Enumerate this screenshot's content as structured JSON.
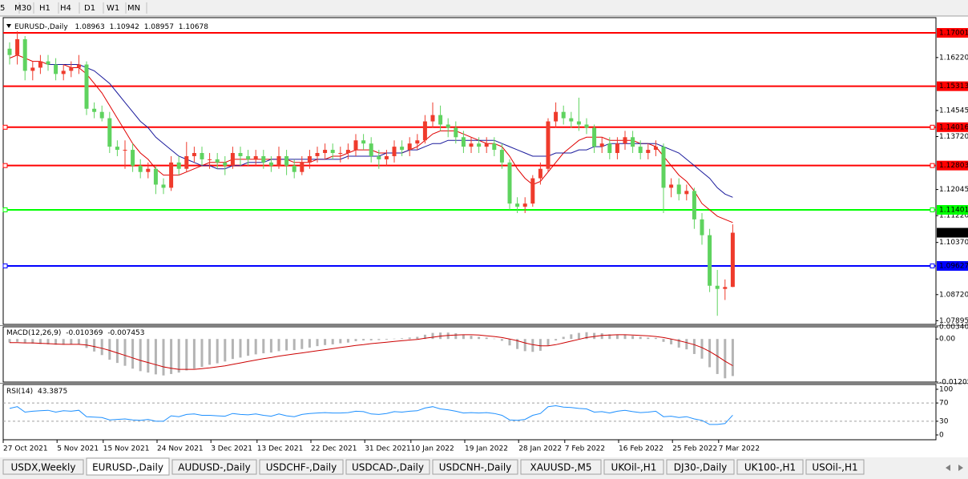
{
  "toolbar": {
    "timeframes": [
      "5",
      "M30",
      "H1",
      "H4",
      "D1",
      "W1",
      "MN"
    ]
  },
  "chart_data": [
    {
      "type": "candlestick",
      "title": "EURUSD-,Daily",
      "categories": [
        "27 Oct 2021",
        null,
        null,
        null,
        null,
        null,
        null,
        "5 Nov 2021",
        null,
        null,
        null,
        null,
        null,
        "15 Nov 2021",
        null,
        null,
        null,
        null,
        null,
        null,
        "24 Nov 2021",
        null,
        null,
        null,
        null,
        null,
        null,
        "3 Dec 2021",
        null,
        null,
        null,
        null,
        null,
        "13 Dec 2021",
        null,
        null,
        null,
        null,
        null,
        null,
        "22 Dec 2021",
        null,
        null,
        null,
        null,
        null,
        null,
        "31 Dec 2021",
        null,
        null,
        null,
        null,
        null,
        "10 Jan 2022",
        null,
        null,
        null,
        null,
        null,
        null,
        "19 Jan 2022",
        null,
        null,
        null,
        null,
        null,
        null,
        "28 Jan 2022",
        null,
        null,
        null,
        null,
        null,
        "7 Feb 2022",
        null,
        null,
        null,
        null,
        null,
        null,
        "16 Feb 2022",
        null,
        null,
        null,
        null,
        null,
        null,
        "25 Feb 2022",
        null,
        null,
        null,
        null,
        null,
        "7 Mar 2022",
        null
      ],
      "open": [
        1.165,
        1.163,
        1.168,
        1.158,
        1.159,
        1.161,
        1.16,
        1.157,
        1.158,
        1.159,
        1.16,
        1.146,
        1.145,
        1.143,
        1.134,
        1.133,
        1.133,
        1.128,
        1.126,
        1.127,
        1.122,
        1.121,
        1.129,
        1.127,
        1.131,
        1.132,
        1.13,
        1.13,
        1.129,
        1.128,
        1.132,
        1.131,
        1.13,
        1.131,
        1.129,
        1.128,
        1.131,
        1.128,
        1.126,
        1.129,
        1.131,
        1.132,
        1.133,
        1.132,
        1.132,
        1.133,
        1.136,
        1.135,
        1.131,
        1.13,
        1.131,
        1.134,
        1.133,
        1.135,
        1.136,
        1.142,
        1.144,
        1.141,
        1.14,
        1.137,
        1.134,
        1.135,
        1.134,
        1.135,
        1.133,
        1.129,
        1.116,
        1.115,
        1.116,
        1.124,
        1.127,
        1.142,
        1.145,
        1.143,
        1.142,
        1.141,
        1.14,
        1.134,
        1.135,
        1.132,
        1.135,
        1.137,
        1.134,
        1.132,
        1.133,
        1.134,
        1.121,
        1.122,
        1.119,
        1.12,
        1.111,
        1.106,
        1.09,
        1.089,
        1.08963
      ],
      "high": [
        1.167,
        1.1705,
        1.169,
        1.161,
        1.163,
        1.163,
        1.162,
        1.16,
        1.161,
        1.163,
        1.161,
        1.148,
        1.147,
        1.145,
        1.136,
        1.136,
        1.135,
        1.13,
        1.129,
        1.128,
        1.124,
        1.131,
        1.131,
        1.1355,
        1.134,
        1.134,
        1.132,
        1.132,
        1.131,
        1.134,
        1.134,
        1.133,
        1.133,
        1.133,
        1.131,
        1.134,
        1.133,
        1.13,
        1.131,
        1.133,
        1.134,
        1.135,
        1.135,
        1.134,
        1.135,
        1.138,
        1.138,
        1.137,
        1.133,
        1.133,
        1.136,
        1.136,
        1.137,
        1.138,
        1.144,
        1.148,
        1.147,
        1.143,
        1.142,
        1.139,
        1.137,
        1.137,
        1.137,
        1.137,
        1.135,
        1.13,
        1.118,
        1.118,
        1.125,
        1.129,
        1.143,
        1.148,
        1.147,
        1.145,
        1.1495,
        1.143,
        1.141,
        1.137,
        1.137,
        1.137,
        1.139,
        1.139,
        1.136,
        1.135,
        1.136,
        1.135,
        1.124,
        1.124,
        1.122,
        1.121,
        1.113,
        1.108,
        1.095,
        1.092,
        1.10942
      ],
      "low": [
        1.16,
        1.16,
        1.155,
        1.155,
        1.157,
        1.158,
        1.155,
        1.155,
        1.156,
        1.157,
        1.144,
        1.143,
        1.142,
        1.132,
        1.131,
        1.127,
        1.126,
        1.124,
        1.124,
        1.119,
        1.119,
        1.12,
        1.125,
        1.126,
        1.129,
        1.128,
        1.127,
        1.127,
        1.125,
        1.127,
        1.128,
        1.128,
        1.128,
        1.127,
        1.126,
        1.127,
        1.125,
        1.124,
        1.125,
        1.127,
        1.129,
        1.13,
        1.13,
        1.129,
        1.13,
        1.131,
        1.133,
        1.129,
        1.127,
        1.128,
        1.129,
        1.131,
        1.131,
        1.133,
        1.135,
        1.14,
        1.139,
        1.137,
        1.135,
        1.132,
        1.132,
        1.132,
        1.132,
        1.131,
        1.127,
        1.114,
        1.113,
        1.113,
        1.115,
        1.122,
        1.126,
        1.14,
        1.141,
        1.14,
        1.139,
        1.138,
        1.132,
        1.132,
        1.13,
        1.13,
        1.133,
        1.132,
        1.13,
        1.13,
        1.131,
        1.113,
        1.118,
        1.117,
        1.117,
        1.108,
        1.103,
        1.088,
        1.0805,
        1.0855,
        1.08957
      ],
      "close": [
        1.163,
        1.168,
        1.158,
        1.159,
        1.161,
        1.16,
        1.157,
        1.158,
        1.159,
        1.16,
        1.146,
        1.145,
        1.143,
        1.134,
        1.133,
        1.133,
        1.128,
        1.126,
        1.127,
        1.122,
        1.121,
        1.129,
        1.127,
        1.131,
        1.132,
        1.13,
        1.13,
        1.129,
        1.128,
        1.132,
        1.131,
        1.13,
        1.131,
        1.129,
        1.128,
        1.131,
        1.128,
        1.126,
        1.129,
        1.131,
        1.132,
        1.133,
        1.132,
        1.132,
        1.133,
        1.136,
        1.135,
        1.131,
        1.13,
        1.131,
        1.134,
        1.133,
        1.135,
        1.136,
        1.142,
        1.144,
        1.141,
        1.14,
        1.137,
        1.134,
        1.135,
        1.134,
        1.135,
        1.133,
        1.129,
        1.116,
        1.115,
        1.116,
        1.124,
        1.127,
        1.142,
        1.145,
        1.143,
        1.142,
        1.141,
        1.14,
        1.134,
        1.135,
        1.132,
        1.135,
        1.137,
        1.134,
        1.132,
        1.133,
        1.134,
        1.121,
        1.122,
        1.119,
        1.12,
        1.111,
        1.106,
        1.09,
        1.089,
        1.0896,
        1.10678
      ],
      "up_color": "#ef3b2c",
      "down_color": "#5fd35f",
      "ma_lines": [
        {
          "color": "#e00000",
          "values": [
            1.162,
            1.163,
            1.162,
            1.161,
            1.161,
            1.16,
            1.16,
            1.16,
            1.159,
            1.159,
            1.157,
            1.154,
            1.151,
            1.147,
            1.143,
            1.139,
            1.135,
            1.132,
            1.13,
            1.127,
            1.125,
            1.125,
            1.125,
            1.126,
            1.127,
            1.128,
            1.129,
            1.129,
            1.129,
            1.13,
            1.13,
            1.13,
            1.13,
            1.13,
            1.13,
            1.13,
            1.13,
            1.129,
            1.129,
            1.129,
            1.13,
            1.13,
            1.131,
            1.131,
            1.132,
            1.133,
            1.133,
            1.133,
            1.132,
            1.132,
            1.132,
            1.132,
            1.133,
            1.134,
            1.136,
            1.138,
            1.139,
            1.139,
            1.139,
            1.138,
            1.137,
            1.136,
            1.135,
            1.135,
            1.134,
            1.131,
            1.127,
            1.124,
            1.122,
            1.123,
            1.126,
            1.129,
            1.132,
            1.134,
            1.136,
            1.137,
            1.137,
            1.137,
            1.136,
            1.136,
            1.136,
            1.136,
            1.135,
            1.135,
            1.134,
            1.131,
            1.128,
            1.125,
            1.123,
            1.12,
            1.116,
            1.114,
            1.112,
            1.111,
            1.11
          ]
        },
        {
          "color": "#1a1a9c",
          "values": [
            null,
            null,
            null,
            null,
            null,
            1.16,
            1.16,
            1.16,
            1.16,
            1.16,
            1.159,
            1.158,
            1.156,
            1.154,
            1.151,
            1.148,
            1.145,
            1.142,
            1.14,
            1.137,
            1.135,
            1.133,
            1.131,
            1.13,
            1.129,
            1.128,
            1.128,
            1.127,
            1.127,
            1.128,
            1.128,
            1.129,
            1.129,
            1.129,
            1.13,
            1.13,
            1.13,
            1.13,
            1.13,
            1.13,
            1.13,
            1.13,
            1.13,
            1.13,
            1.131,
            1.131,
            1.131,
            1.131,
            1.131,
            1.132,
            1.132,
            1.132,
            1.133,
            1.133,
            1.134,
            1.135,
            1.135,
            1.136,
            1.136,
            1.136,
            1.136,
            1.136,
            1.136,
            1.136,
            1.135,
            1.134,
            1.133,
            1.132,
            1.131,
            1.131,
            1.131,
            1.132,
            1.132,
            1.132,
            1.133,
            1.133,
            1.134,
            1.134,
            1.135,
            1.135,
            1.135,
            1.135,
            1.135,
            1.135,
            1.135,
            1.134,
            1.133,
            1.132,
            1.13,
            1.128,
            1.126,
            1.124,
            1.121,
            1.119,
            1.118
          ]
        }
      ],
      "hlines": [
        {
          "value": 1.17001,
          "color": "#ff0000",
          "anchor": false
        },
        {
          "value": 1.15313,
          "color": "#ff0000",
          "anchor": false
        },
        {
          "value": 1.14016,
          "color": "#ff0000",
          "anchor": true
        },
        {
          "value": 1.12803,
          "color": "#ff0000",
          "anchor": true
        },
        {
          "value": 1.11401,
          "color": "#00ff00",
          "anchor": true
        },
        {
          "value": 1.09627,
          "color": "#0000ff",
          "anchor": true
        }
      ],
      "ylim": [
        1.07777,
        1.17483
      ],
      "yticks": [
        {
          "value": 1.1622,
          "label": "1.16220"
        },
        1.14545,
        {
          "value": 1.1372,
          "label": "1.13720"
        },
        1.12045,
        {
          "value": 1.1122,
          "label": "1.11220"
        },
        {
          "value": 1.1037,
          "label": "1.10370"
        },
        {
          "value": 1.0872,
          "label": "1.08720"
        },
        1.07895
      ]
    },
    {
      "type": "bar",
      "title": "MACD(12,26,9)",
      "color": "#b4b4b4",
      "signal_color": "#cc0000",
      "values": [
        -0.001,
        -0.0008,
        -0.0012,
        -0.0013,
        -0.0014,
        -0.0015,
        -0.0016,
        -0.0016,
        -0.0015,
        -0.0014,
        -0.0025,
        -0.0035,
        -0.0045,
        -0.0058,
        -0.0067,
        -0.0075,
        -0.0083,
        -0.009,
        -0.0094,
        -0.0099,
        -0.0102,
        -0.0098,
        -0.0094,
        -0.0088,
        -0.0083,
        -0.0078,
        -0.0072,
        -0.0068,
        -0.0063,
        -0.0056,
        -0.0052,
        -0.0047,
        -0.0043,
        -0.004,
        -0.0038,
        -0.0034,
        -0.0032,
        -0.0031,
        -0.0028,
        -0.0024,
        -0.002,
        -0.0017,
        -0.0015,
        -0.0012,
        -0.001,
        -0.0006,
        -0.0004,
        -0.0004,
        -0.0003,
        -0.0002,
        0.0001,
        0.0002,
        0.0004,
        0.0006,
        0.0012,
        0.0017,
        0.0018,
        0.0018,
        0.0016,
        0.0012,
        0.0009,
        0.0006,
        0.0004,
        0.0001,
        -0.0005,
        -0.0018,
        -0.0028,
        -0.0034,
        -0.0036,
        -0.0033,
        -0.0018,
        -0.0004,
        0.0006,
        0.0013,
        0.0017,
        0.0019,
        0.0017,
        0.0016,
        0.0013,
        0.0012,
        0.0012,
        0.0009,
        0.0006,
        0.0004,
        0.0003,
        -0.0008,
        -0.0015,
        -0.0024,
        -0.0029,
        -0.0042,
        -0.0055,
        -0.0079,
        -0.0098,
        -0.011,
        -0.010369
      ],
      "signal": [
        -0.001,
        -0.001,
        -0.0011,
        -0.0011,
        -0.0012,
        -0.0013,
        -0.0014,
        -0.0015,
        -0.0015,
        -0.0015,
        -0.0017,
        -0.0021,
        -0.0026,
        -0.0032,
        -0.0039,
        -0.0046,
        -0.0053,
        -0.006,
        -0.0066,
        -0.0072,
        -0.0078,
        -0.0082,
        -0.0085,
        -0.0085,
        -0.0085,
        -0.0083,
        -0.0081,
        -0.0078,
        -0.0075,
        -0.0071,
        -0.0067,
        -0.0063,
        -0.0059,
        -0.0055,
        -0.0052,
        -0.0048,
        -0.0045,
        -0.0042,
        -0.0039,
        -0.0036,
        -0.0033,
        -0.003,
        -0.0027,
        -0.0024,
        -0.0021,
        -0.0018,
        -0.0016,
        -0.0013,
        -0.0011,
        -0.0009,
        -0.0007,
        -0.0005,
        -0.0003,
        -0.0001,
        0.0002,
        0.0005,
        0.0008,
        0.001,
        0.0011,
        0.0012,
        0.0012,
        0.0011,
        0.0009,
        0.0007,
        0.0004,
        0,
        -0.0005,
        -0.0011,
        -0.0016,
        -0.0019,
        -0.0019,
        -0.0016,
        -0.0011,
        -0.0006,
        -0.0001,
        0.0004,
        0.0007,
        0.001,
        0.0011,
        0.0012,
        0.0012,
        0.0011,
        0.001,
        0.0009,
        0.0007,
        0.0004,
        0,
        -0.0005,
        -0.001,
        -0.0016,
        -0.0024,
        -0.0035,
        -0.0048,
        -0.0062,
        -0.007453
      ],
      "ylim": [
        -0.012058,
        0.003408
      ],
      "yticks": [
        0.003408,
        {
          "value": 0,
          "label": "0.00"
        },
        -0.012058
      ]
    },
    {
      "type": "line",
      "title": "RSI(14)",
      "color": "#1e90ff",
      "values": [
        58,
        62,
        50,
        52,
        53,
        54,
        50,
        53,
        52,
        54,
        40,
        39,
        38,
        33,
        34,
        35,
        33,
        32,
        34,
        30,
        30,
        42,
        40,
        45,
        46,
        43,
        43,
        42,
        41,
        47,
        45,
        44,
        46,
        43,
        41,
        46,
        42,
        40,
        45,
        47,
        48,
        49,
        48,
        48,
        49,
        52,
        51,
        46,
        45,
        47,
        51,
        50,
        52,
        53,
        59,
        62,
        57,
        55,
        52,
        48,
        49,
        48,
        49,
        47,
        43,
        33,
        32,
        34,
        43,
        47,
        62,
        64,
        61,
        60,
        58,
        57,
        50,
        51,
        48,
        52,
        54,
        51,
        49,
        50,
        52,
        40,
        41,
        38,
        40,
        35,
        32,
        23,
        23,
        25,
        43.3875
      ],
      "levels": [
        70,
        30
      ],
      "ylim": [
        0,
        100
      ],
      "yticks": [
        100,
        70,
        30,
        0
      ]
    }
  ],
  "tabs": [
    "USDX,Weekly",
    "EURUSD-,Daily",
    "AUDUSD-,Daily",
    "USDCHF-,Daily",
    "USDCAD-,Daily",
    "USDCNH-,Daily",
    "XAUUSD-,M5",
    "UKOil-,H1",
    "DJ30-,Daily",
    "UK100-,H1",
    "USOil-,H1"
  ],
  "active_tab": 1
}
